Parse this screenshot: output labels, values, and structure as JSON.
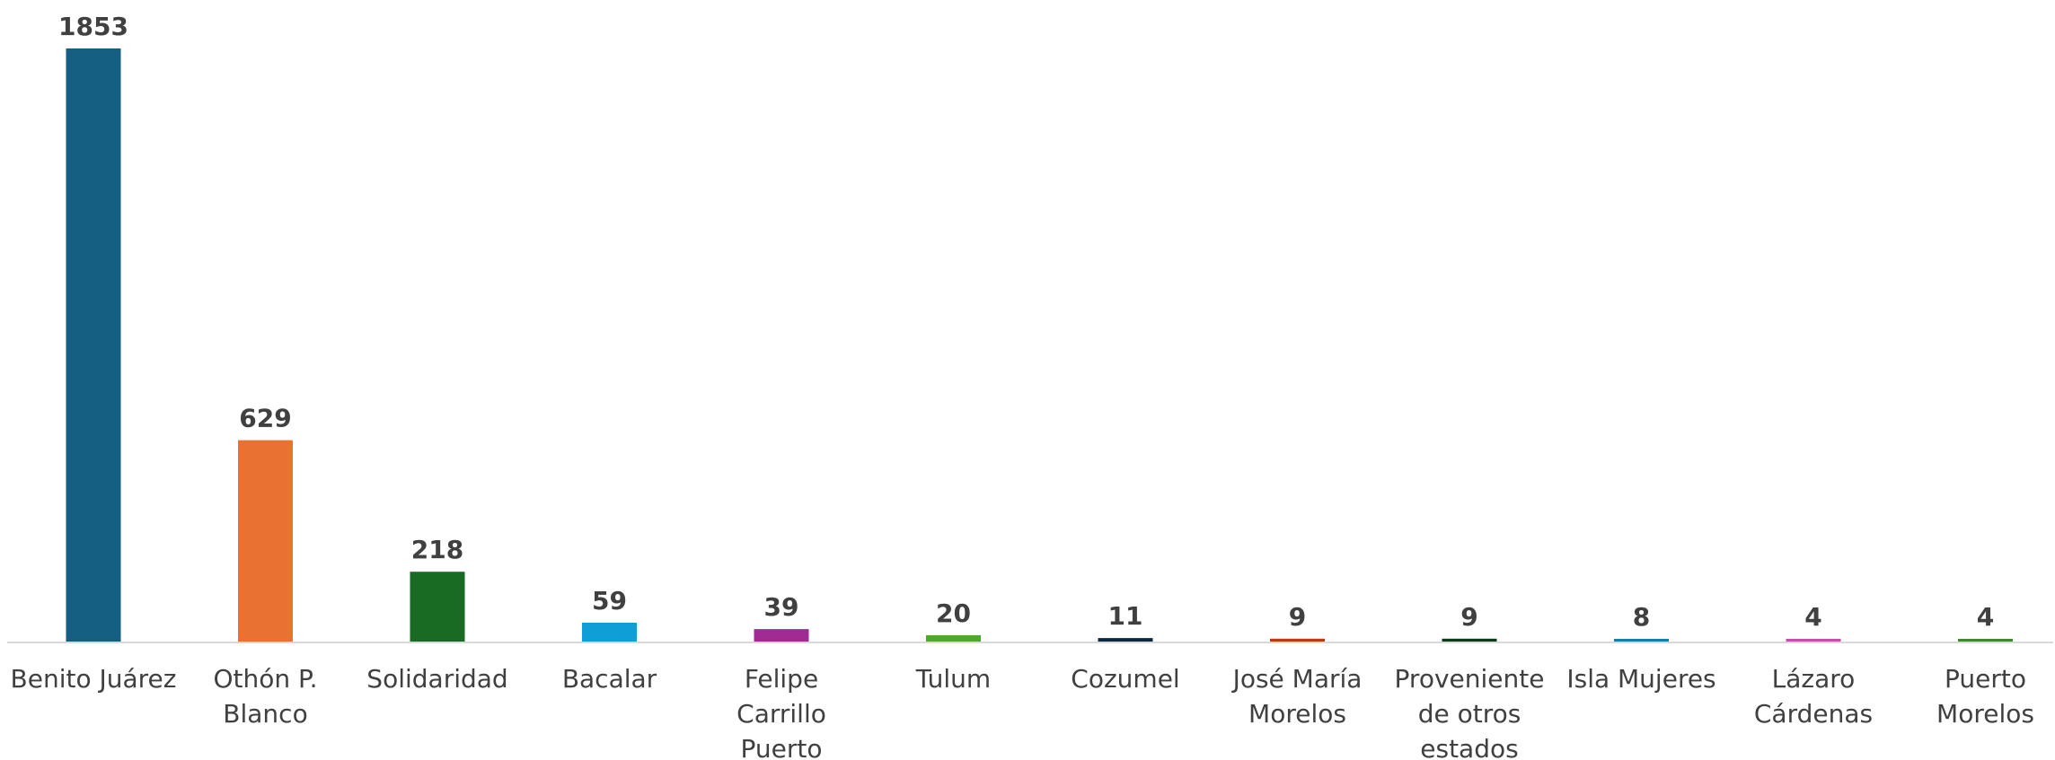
{
  "chart_data": {
    "type": "bar",
    "title": "",
    "xlabel": "",
    "ylabel": "",
    "ylim": [
      0,
      1853
    ],
    "grid": false,
    "legend": "none",
    "categories": [
      "Benito Juárez",
      "Othón P. Blanco",
      "Solidaridad",
      "Bacalar",
      "Felipe Carrillo Puerto",
      "Tulum",
      "Cozumel",
      "José María Morelos",
      "Proveniente de otros estados",
      "Isla Mujeres",
      "Lázaro Cárdenas",
      "Puerto Morelos"
    ],
    "category_lines": [
      [
        "Benito Juárez"
      ],
      [
        "Othón P.",
        "Blanco"
      ],
      [
        "Solidaridad"
      ],
      [
        "Bacalar"
      ],
      [
        "Felipe",
        "Carrillo",
        "Puerto"
      ],
      [
        "Tulum"
      ],
      [
        "Cozumel"
      ],
      [
        "José María",
        "Morelos"
      ],
      [
        "Proveniente",
        "de otros",
        "estados"
      ],
      [
        "Isla Mujeres"
      ],
      [
        "Lázaro",
        "Cárdenas"
      ],
      [
        "Puerto",
        "Morelos"
      ]
    ],
    "values": [
      1853,
      629,
      218,
      59,
      39,
      20,
      11,
      9,
      9,
      8,
      4,
      4
    ],
    "data_labels": [
      "1853",
      "629",
      "218",
      "59",
      "39",
      "20",
      "11",
      "9",
      "9",
      "8",
      "4",
      "4"
    ],
    "colors": [
      "#156082",
      "#E97132",
      "#196B24",
      "#0F9ED5",
      "#A02B93",
      "#4EA72E",
      "#0E2841",
      "#BA3B0F",
      "#0E3B17",
      "#1A7CAD",
      "#C44FB4",
      "#3A8A2A"
    ]
  }
}
